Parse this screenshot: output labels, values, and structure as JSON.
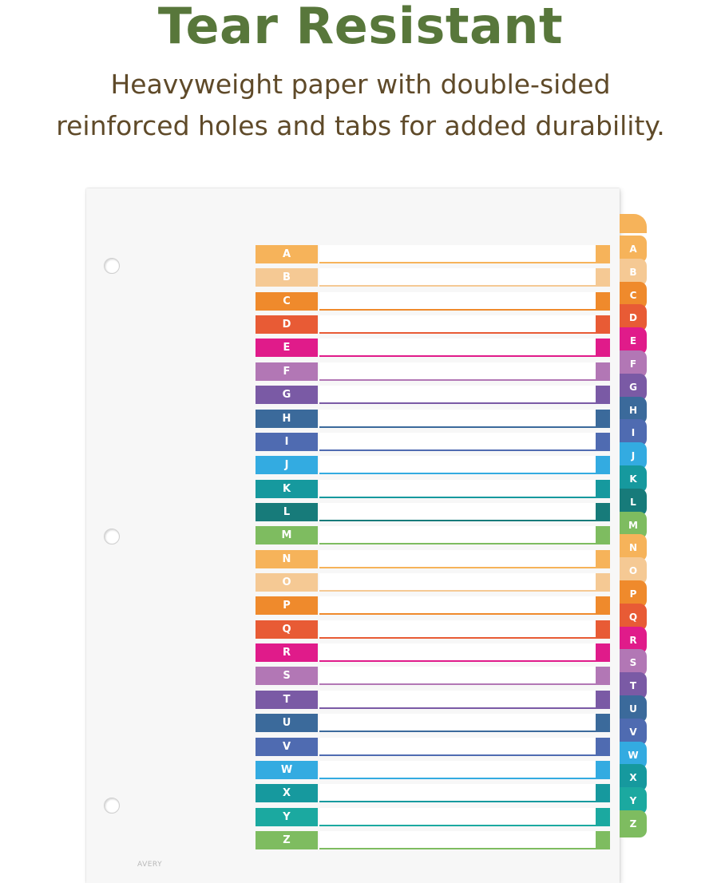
{
  "headline": "Tear Resistant",
  "subline_1": "Heavyweight paper with double-sided",
  "subline_2": "reinforced holes and tabs for added durability.",
  "brand": "AVERY",
  "rows": [
    {
      "letter": "A",
      "color": "#f6b35a"
    },
    {
      "letter": "B",
      "color": "#f5c994"
    },
    {
      "letter": "C",
      "color": "#ef8a2c"
    },
    {
      "letter": "D",
      "color": "#e85b35"
    },
    {
      "letter": "E",
      "color": "#e01b8a"
    },
    {
      "letter": "F",
      "color": "#b277b5"
    },
    {
      "letter": "G",
      "color": "#7a5aa5"
    },
    {
      "letter": "H",
      "color": "#3b6a9b"
    },
    {
      "letter": "I",
      "color": "#4f6bb1"
    },
    {
      "letter": "J",
      "color": "#33abe1"
    },
    {
      "letter": "K",
      "color": "#16999e"
    },
    {
      "letter": "L",
      "color": "#177b7a"
    },
    {
      "letter": "M",
      "color": "#7ebc60"
    },
    {
      "letter": "N",
      "color": "#f6b35a"
    },
    {
      "letter": "O",
      "color": "#f5c994"
    },
    {
      "letter": "P",
      "color": "#ef8a2c"
    },
    {
      "letter": "Q",
      "color": "#e85b35"
    },
    {
      "letter": "R",
      "color": "#e01b8a"
    },
    {
      "letter": "S",
      "color": "#b277b5"
    },
    {
      "letter": "T",
      "color": "#7a5aa5"
    },
    {
      "letter": "U",
      "color": "#3b6a9b"
    },
    {
      "letter": "V",
      "color": "#4f6bb1"
    },
    {
      "letter": "W",
      "color": "#33abe1"
    },
    {
      "letter": "X",
      "color": "#16999e"
    },
    {
      "letter": "Y",
      "color": "#1ba9a0"
    },
    {
      "letter": "Z",
      "color": "#7ebc60"
    }
  ]
}
